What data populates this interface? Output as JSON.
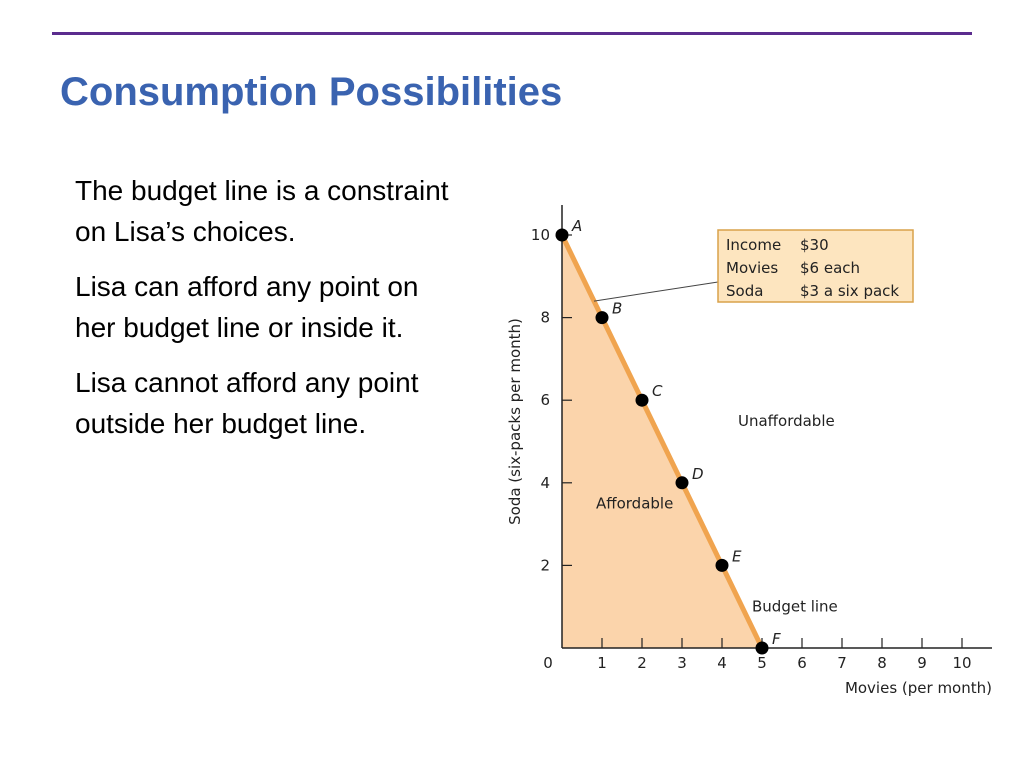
{
  "slide": {
    "title": "Consumption Possibilities",
    "bullets": [
      "The budget line is a constraint on Lisa’s choices.",
      "Lisa can afford any point on her budget line or inside it.",
      "Lisa cannot afford any point outside her budget line."
    ]
  },
  "colors": {
    "rule": "#5b2c8e",
    "title": "#3a63b0",
    "affordable_fill": "#fbd4ab",
    "budget_line": "#f0a44f",
    "info_box_fill": "#fde5bf",
    "info_box_border": "#d9a24a"
  },
  "chart_data": {
    "type": "line",
    "xlabel": "Movies (per month)",
    "ylabel": "Soda (six-packs per month)",
    "xlim": [
      0,
      10
    ],
    "ylim": [
      0,
      10
    ],
    "xticks": [
      1,
      2,
      3,
      4,
      5,
      6,
      7,
      8,
      9,
      10
    ],
    "yticks": [
      2,
      4,
      6,
      8,
      10
    ],
    "origin_label": "0",
    "points": [
      {
        "label": "A",
        "x": 0,
        "y": 10
      },
      {
        "label": "B",
        "x": 1,
        "y": 8
      },
      {
        "label": "C",
        "x": 2,
        "y": 6
      },
      {
        "label": "D",
        "x": 3,
        "y": 4
      },
      {
        "label": "E",
        "x": 4,
        "y": 2
      },
      {
        "label": "F",
        "x": 5,
        "y": 0
      }
    ],
    "region_labels": {
      "affordable": "Affordable",
      "unaffordable": "Unaffordable"
    },
    "budget_line_label": "Budget line",
    "info_box": [
      [
        "Income",
        "$30"
      ],
      [
        "Movies",
        "$6 each"
      ],
      [
        "Soda",
        "$3 a six pack"
      ]
    ]
  }
}
